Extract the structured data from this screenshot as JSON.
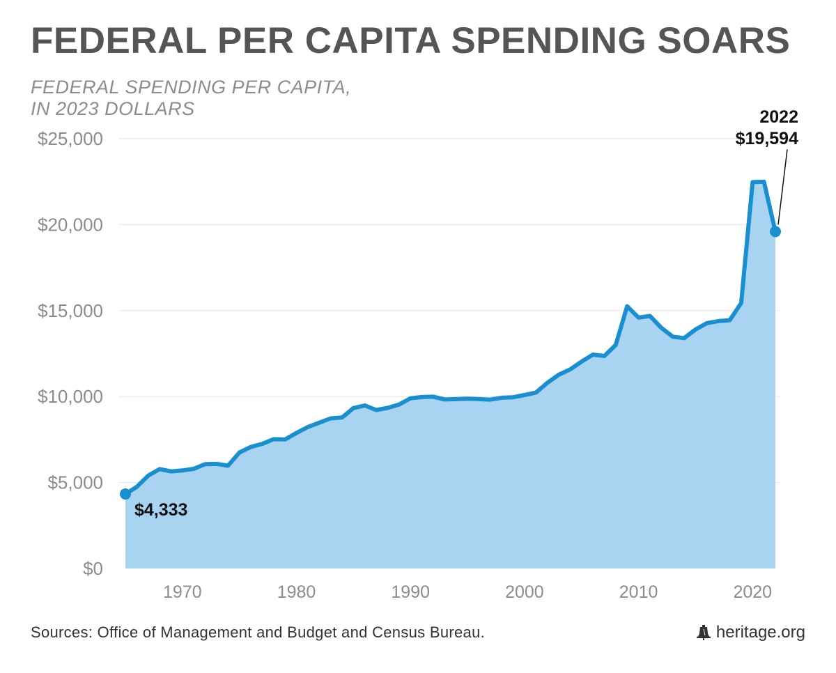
{
  "title": "FEDERAL PER CAPITA SPENDING SOARS",
  "subtitle_line1": "FEDERAL SPENDING PER CAPITA,",
  "subtitle_line2": "IN 2023 DOLLARS",
  "footer": {
    "source": "Sources: Office of Management and Budget and Census Bureau.",
    "brand": "heritage.org",
    "brand_icon": "liberty-bell-icon"
  },
  "colors": {
    "line": "#1a8fd0",
    "area": "#a8d3f1",
    "title": "#555555",
    "axis_text": "#8c8c8c",
    "annotation": "#111111"
  },
  "chart_data": {
    "type": "area",
    "title": "FEDERAL PER CAPITA SPENDING SOARS",
    "subtitle": "FEDERAL SPENDING PER CAPITA, IN 2023 DOLLARS",
    "xlabel": "",
    "ylabel": "",
    "xlim": [
      1965,
      2022
    ],
    "ylim": [
      0,
      25000
    ],
    "grid": true,
    "legend": "none",
    "y_ticks": [
      0,
      5000,
      10000,
      15000,
      20000,
      25000
    ],
    "y_tick_labels": [
      "$0",
      "$5,000",
      "$10,000",
      "$15,000",
      "$20,000",
      "$25,000"
    ],
    "x_ticks": [
      1970,
      1980,
      1990,
      2000,
      2010,
      2020
    ],
    "x_tick_labels": [
      "1970",
      "1980",
      "1990",
      "2000",
      "2010",
      "2020"
    ],
    "x": [
      1965,
      1966,
      1967,
      1968,
      1969,
      1970,
      1971,
      1972,
      1973,
      1974,
      1975,
      1976,
      1977,
      1978,
      1979,
      1980,
      1981,
      1982,
      1983,
      1984,
      1985,
      1986,
      1987,
      1988,
      1989,
      1990,
      1991,
      1992,
      1993,
      1994,
      1995,
      1996,
      1997,
      1998,
      1999,
      2000,
      2001,
      2002,
      2003,
      2004,
      2005,
      2006,
      2007,
      2008,
      2009,
      2010,
      2011,
      2012,
      2013,
      2014,
      2015,
      2016,
      2017,
      2018,
      2019,
      2020,
      2021,
      2022
    ],
    "values": [
      4333,
      4750,
      5400,
      5780,
      5650,
      5700,
      5800,
      6070,
      6080,
      5980,
      6750,
      7070,
      7250,
      7520,
      7510,
      7880,
      8230,
      8480,
      8730,
      8780,
      9330,
      9480,
      9220,
      9340,
      9540,
      9900,
      9970,
      9990,
      9830,
      9850,
      9880,
      9850,
      9820,
      9930,
      9960,
      10090,
      10230,
      10800,
      11270,
      11580,
      12030,
      12440,
      12360,
      13000,
      15250,
      14590,
      14690,
      14000,
      13480,
      13400,
      13900,
      14270,
      14390,
      14440,
      15440,
      22470,
      22490,
      19594
    ],
    "annotations": [
      {
        "year": 1965,
        "value": 4333,
        "label": "$4,333"
      },
      {
        "year": 2022,
        "value": 19594,
        "label_year": "2022",
        "label": "$19,594"
      }
    ]
  }
}
